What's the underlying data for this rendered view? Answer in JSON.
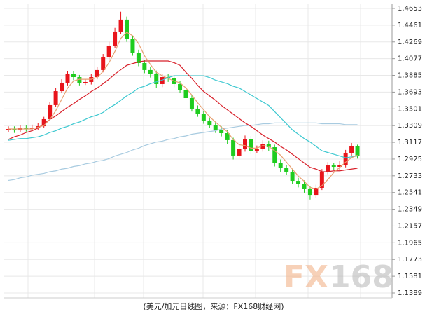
{
  "chart_data": {
    "type": "candlestick",
    "caption": "(美元/加元日线图，来源：FX168财经网)",
    "watermark_fx": "FX",
    "watermark_num": "168",
    "up_color": "#e8141b",
    "down_color": "#1fcc1f",
    "ylim": [
      1.1389,
      1.4653
    ],
    "yticks": [
      1.4653,
      1.4461,
      1.4269,
      1.4077,
      1.3885,
      1.3693,
      1.3501,
      1.3309,
      1.3117,
      1.2925,
      1.2733,
      1.2541,
      1.2349,
      1.2157,
      1.1965,
      1.1773,
      1.1581,
      1.1389
    ],
    "grid": true,
    "open": [
      1.3262,
      1.327,
      1.3254,
      1.3286,
      1.327,
      1.3286,
      1.3302,
      1.3383,
      1.3544,
      1.3704,
      1.3801,
      1.3905,
      1.3865,
      1.3801,
      1.3809,
      1.3865,
      1.3946,
      1.409,
      1.4227,
      1.4388,
      1.4525,
      1.4307,
      1.4146,
      1.4026,
      1.3946,
      1.3905,
      1.3785,
      1.3865,
      1.3849,
      1.3785,
      1.372,
      1.3624,
      1.3503,
      1.3447,
      1.3367,
      1.3318,
      1.3262,
      1.3222,
      1.3142,
      1.2965,
      1.3045,
      1.3157,
      1.3021,
      1.3045,
      1.3101,
      1.3061,
      1.2884,
      1.282,
      1.278,
      1.2675,
      1.2643,
      1.2579,
      1.2514,
      1.2595,
      1.278,
      1.2852,
      1.2836,
      1.286,
      1.2997,
      1.3077
    ],
    "high": [
      1.33,
      1.33,
      1.3315,
      1.331,
      1.332,
      1.3335,
      1.341,
      1.358,
      1.374,
      1.384,
      1.3935,
      1.3935,
      1.389,
      1.3845,
      1.39,
      1.398,
      1.413,
      1.427,
      1.443,
      1.4615,
      1.456,
      1.434,
      1.418,
      1.406,
      1.398,
      1.394,
      1.39,
      1.39,
      1.388,
      1.382,
      1.376,
      1.366,
      1.354,
      1.348,
      1.34,
      1.335,
      1.33,
      1.326,
      1.317,
      1.308,
      1.3195,
      1.319,
      1.308,
      1.314,
      1.3135,
      1.309,
      1.292,
      1.286,
      1.281,
      1.271,
      1.268,
      1.261,
      1.263,
      1.281,
      1.289,
      1.288,
      1.29,
      1.303,
      1.311,
      1.309
    ],
    "low": [
      1.3235,
      1.3225,
      1.323,
      1.324,
      1.3245,
      1.3255,
      1.328,
      1.336,
      1.352,
      1.368,
      1.377,
      1.383,
      1.377,
      1.3775,
      1.378,
      1.384,
      1.392,
      1.406,
      1.42,
      1.436,
      1.427,
      1.411,
      1.399,
      1.391,
      1.386,
      1.374,
      1.375,
      1.381,
      1.375,
      1.368,
      1.359,
      1.347,
      1.341,
      1.333,
      1.328,
      1.3225,
      1.3185,
      1.31,
      1.292,
      1.293,
      1.301,
      1.298,
      1.299,
      1.301,
      1.302,
      1.284,
      1.278,
      1.274,
      1.264,
      1.26,
      1.254,
      1.246,
      1.248,
      1.257,
      1.275,
      1.28,
      1.28,
      1.283,
      1.296,
      1.293
    ],
    "close": [
      1.327,
      1.3254,
      1.3286,
      1.327,
      1.3286,
      1.3302,
      1.3383,
      1.3544,
      1.3704,
      1.3801,
      1.3905,
      1.3865,
      1.3801,
      1.3809,
      1.3865,
      1.3946,
      1.409,
      1.4227,
      1.4388,
      1.4525,
      1.4307,
      1.4146,
      1.4026,
      1.3946,
      1.3905,
      1.3785,
      1.3865,
      1.3849,
      1.3785,
      1.372,
      1.3624,
      1.3503,
      1.3447,
      1.3367,
      1.3318,
      1.3262,
      1.3222,
      1.3142,
      1.2965,
      1.3045,
      1.3157,
      1.3021,
      1.3045,
      1.3101,
      1.3061,
      1.2884,
      1.282,
      1.278,
      1.2675,
      1.2643,
      1.2579,
      1.2514,
      1.2595,
      1.278,
      1.2852,
      1.2836,
      1.286,
      1.2997,
      1.3077,
      1.2965
    ],
    "lines": [
      {
        "color": "#a8cbe0",
        "values": [
          1.268,
          1.269,
          1.271,
          1.272,
          1.274,
          1.275,
          1.276,
          1.278,
          1.279,
          1.281,
          1.282,
          1.284,
          1.285,
          1.287,
          1.288,
          1.29,
          1.291,
          1.293,
          1.296,
          1.298,
          1.3,
          1.303,
          1.305,
          1.308,
          1.31,
          1.312,
          1.313,
          1.315,
          1.316,
          1.318,
          1.319,
          1.321,
          1.322,
          1.323,
          1.324,
          1.325,
          1.327,
          1.328,
          1.329,
          1.33,
          1.331,
          1.331,
          1.332,
          1.333,
          1.333,
          1.334,
          1.334,
          1.334,
          1.334,
          1.334,
          1.334,
          1.334,
          1.334,
          1.333,
          1.333,
          1.333,
          1.333,
          1.332,
          1.332,
          1.332
        ]
      },
      {
        "color": "#3cc8d0",
        "values": [
          1.314,
          1.315,
          1.316,
          1.316,
          1.317,
          1.318,
          1.32,
          1.323,
          1.325,
          1.328,
          1.33,
          1.333,
          1.335,
          1.338,
          1.341,
          1.343,
          1.346,
          1.351,
          1.355,
          1.36,
          1.365,
          1.369,
          1.374,
          1.376,
          1.379,
          1.381,
          1.383,
          1.386,
          1.388,
          1.388,
          1.388,
          1.388,
          1.388,
          1.388,
          1.386,
          1.383,
          1.381,
          1.379,
          1.376,
          1.374,
          1.37,
          1.366,
          1.362,
          1.358,
          1.354,
          1.347,
          1.34,
          1.333,
          1.326,
          1.321,
          1.316,
          1.312,
          1.307,
          1.302,
          1.3,
          1.298,
          1.296,
          1.294,
          1.295,
          1.296
        ]
      },
      {
        "color": "#d8202a",
        "values": [
          1.315,
          1.318,
          1.32,
          1.323,
          1.325,
          1.328,
          1.333,
          1.338,
          1.342,
          1.347,
          1.352,
          1.356,
          1.361,
          1.365,
          1.37,
          1.374,
          1.379,
          1.384,
          1.39,
          1.395,
          1.4,
          1.402,
          1.404,
          1.405,
          1.405,
          1.405,
          1.405,
          1.405,
          1.403,
          1.4,
          1.392,
          1.385,
          1.377,
          1.37,
          1.365,
          1.36,
          1.354,
          1.349,
          1.344,
          1.339,
          1.334,
          1.33,
          1.325,
          1.32,
          1.316,
          1.312,
          1.307,
          1.303,
          1.298,
          1.293,
          1.288,
          1.283,
          1.281,
          1.278,
          1.278,
          1.279,
          1.279,
          1.28,
          1.281,
          1.282
        ]
      },
      {
        "color": "#e8a070",
        "values": [
          1.327,
          1.327,
          1.327,
          1.327,
          1.327,
          1.329,
          1.331,
          1.338,
          1.348,
          1.361,
          1.374,
          1.382,
          1.384,
          1.384,
          1.384,
          1.386,
          1.393,
          1.403,
          1.416,
          1.431,
          1.438,
          1.434,
          1.425,
          1.411,
          1.401,
          1.392,
          1.388,
          1.385,
          1.382,
          1.38,
          1.374,
          1.366,
          1.357,
          1.349,
          1.341,
          1.335,
          1.329,
          1.324,
          1.315,
          1.309,
          1.308,
          1.305,
          1.305,
          1.308,
          1.307,
          1.302,
          1.297,
          1.289,
          1.281,
          1.273,
          1.267,
          1.26,
          1.258,
          1.262,
          1.269,
          1.277,
          1.283,
          1.289,
          1.294,
          1.297
        ]
      }
    ]
  }
}
